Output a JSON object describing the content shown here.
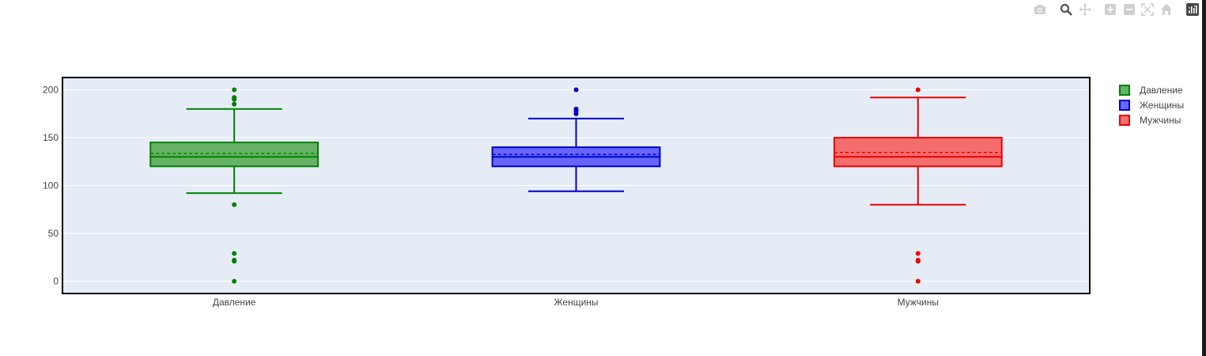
{
  "modebar": {
    "icons": [
      "camera-icon",
      "zoom-icon",
      "pan-icon",
      "zoom-in-icon",
      "zoom-out-icon",
      "autoscale-icon",
      "reset-axes-icon",
      "plotly-logo-icon"
    ]
  },
  "chart_data": {
    "type": "box",
    "title": "",
    "xlabel": "",
    "ylabel": "",
    "ylim": [
      -12,
      212
    ],
    "yticks": [
      0,
      50,
      100,
      150,
      200
    ],
    "grid": true,
    "legend_position": "top-right",
    "categories": [
      "Давление",
      "Женщины",
      "Мужчины"
    ],
    "series": [
      {
        "name": "Давление",
        "color": "#008000",
        "fill": "#66b266",
        "q1": 120,
        "median": 130,
        "mean": 133.5,
        "q3": 145,
        "lower_whisker": 92,
        "upper_whisker": 180,
        "outliers": [
          200,
          192,
          190,
          185,
          80,
          29,
          22,
          21,
          0
        ]
      },
      {
        "name": "Женщины",
        "color": "#0000cc",
        "fill": "#6666ff",
        "q1": 120,
        "median": 130,
        "mean": 132.5,
        "q3": 140,
        "lower_whisker": 94,
        "upper_whisker": 170,
        "outliers": [
          200,
          180,
          178,
          175
        ]
      },
      {
        "name": "Мужчины",
        "color": "#ee0000",
        "fill": "#f46e6e",
        "q1": 120,
        "median": 130,
        "mean": 134.5,
        "q3": 150,
        "lower_whisker": 80,
        "upper_whisker": 192,
        "outliers": [
          200,
          29,
          22,
          21,
          0
        ]
      }
    ]
  }
}
